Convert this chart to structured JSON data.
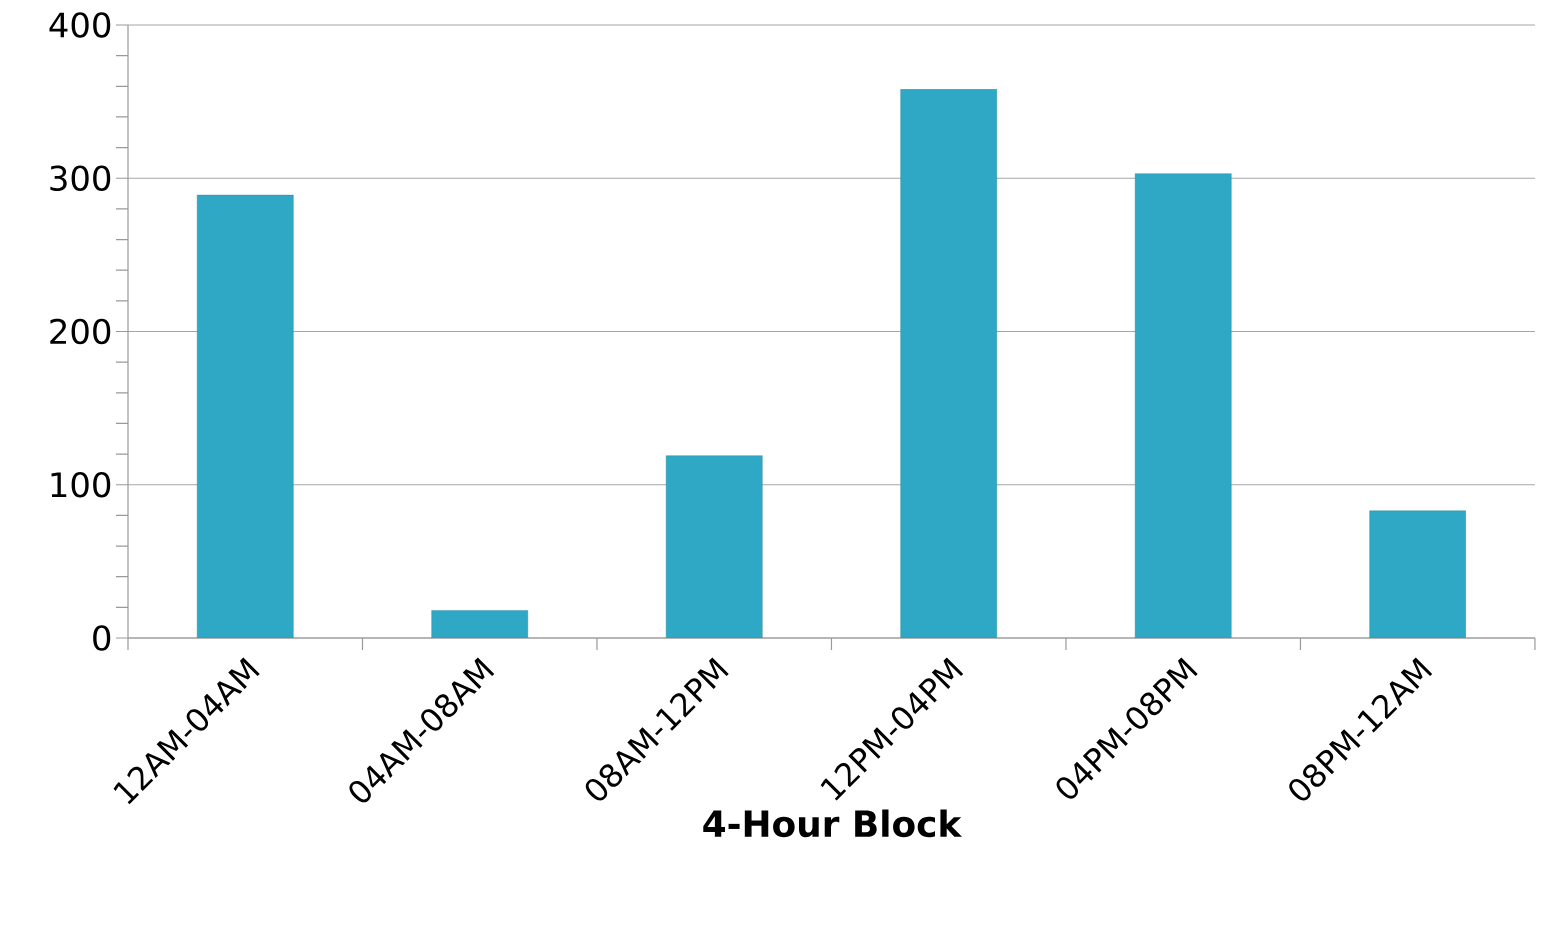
{
  "chart_data": {
    "type": "bar",
    "xlabel": "4-Hour Block",
    "categories": [
      "12AM-04AM",
      "04AM-08AM",
      "08AM-12PM",
      "12PM-04PM",
      "04PM-08PM",
      "08PM-12AM"
    ],
    "values": [
      289,
      18,
      119,
      358,
      303,
      83
    ],
    "color": "#2ea8c4",
    "ylim": [
      0,
      400
    ],
    "yticks": [
      0,
      100,
      200,
      300,
      400
    ],
    "grid": "y"
  }
}
